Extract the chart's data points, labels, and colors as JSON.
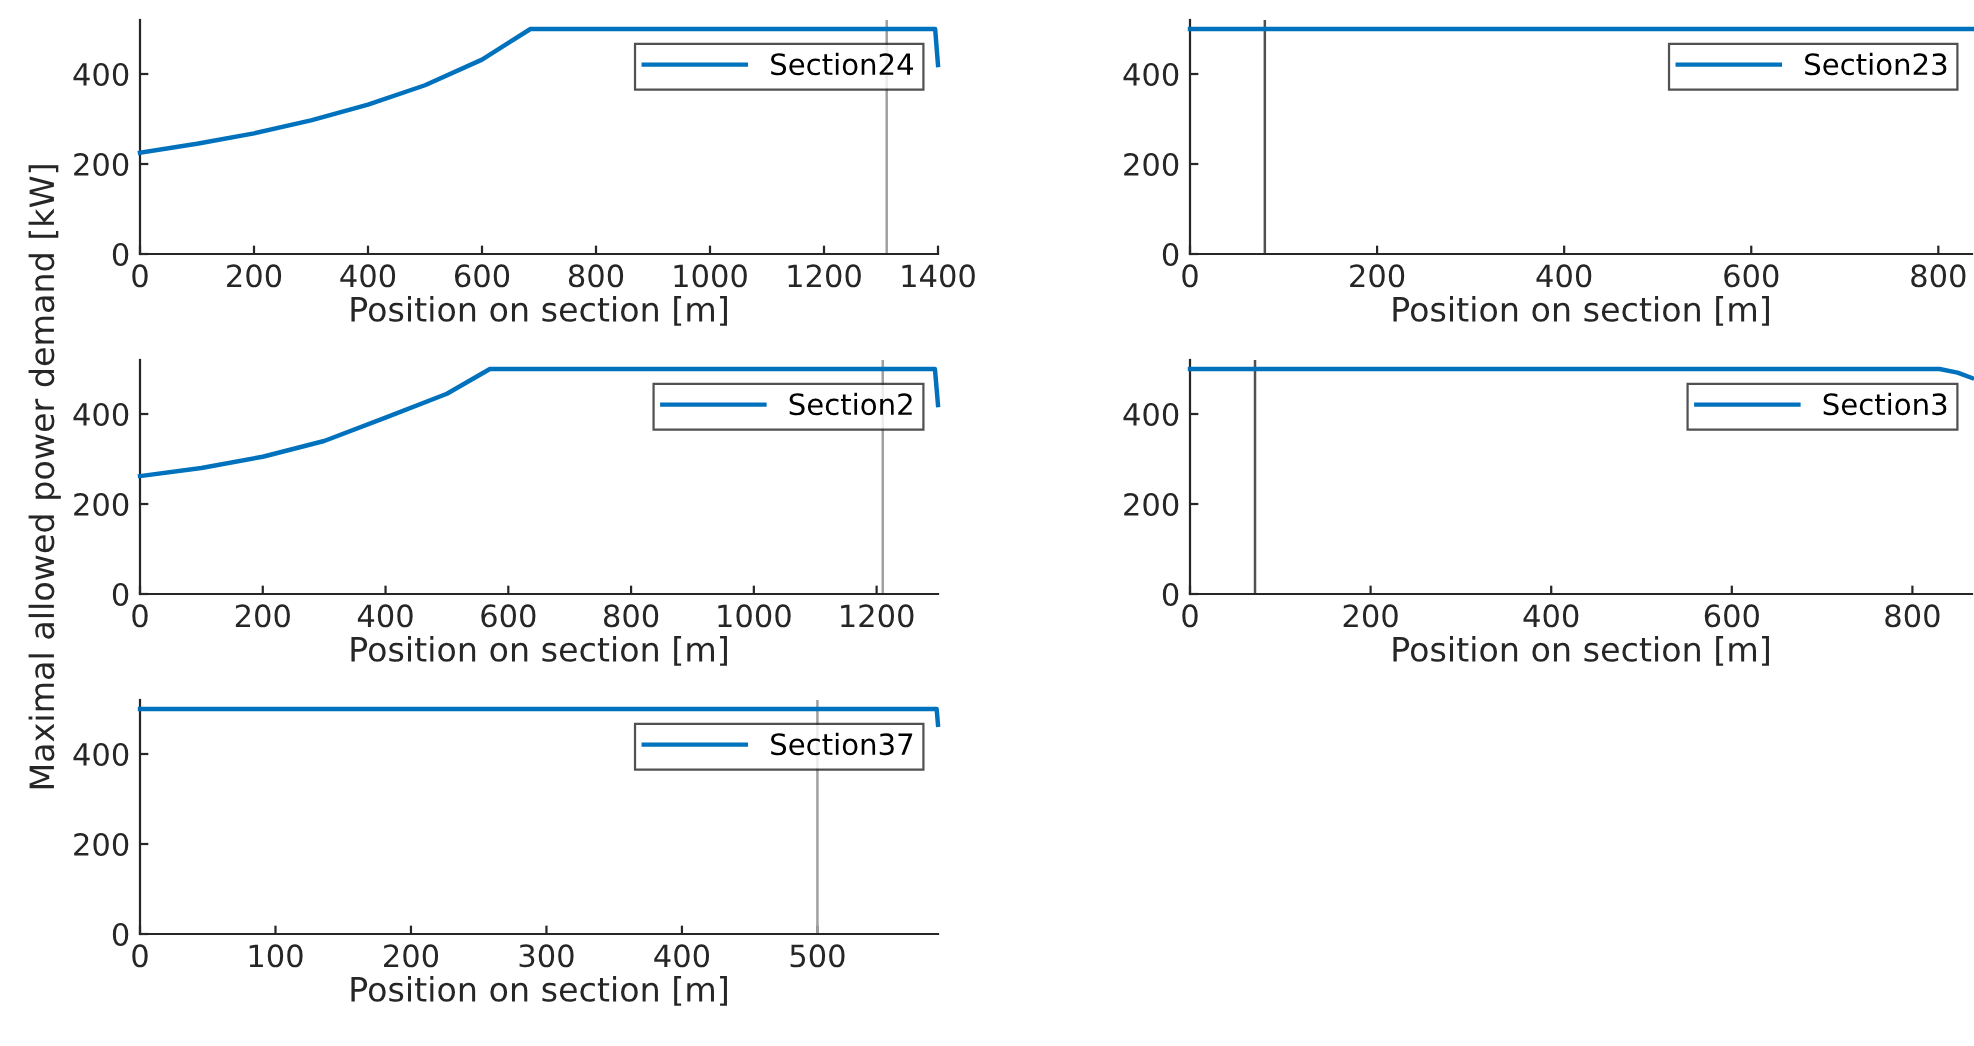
{
  "chart_data": [
    {
      "type": "line",
      "xlabel": "Position on section [m]",
      "x": [
        0,
        100,
        200,
        300,
        400,
        500,
        600,
        685,
        1395,
        1400
      ],
      "series": [
        {
          "name": "Section24",
          "color": "#0072bd",
          "values": [
            225,
            245,
            268,
            297,
            332,
            375,
            432,
            500,
            500,
            420
          ]
        }
      ],
      "xlim": [
        0,
        1400
      ],
      "xticks": [
        0,
        200,
        400,
        600,
        800,
        1000,
        1200,
        1400
      ],
      "ylim": [
        0,
        520
      ],
      "yticks": [
        0,
        200,
        400
      ],
      "ref_lines": [
        {
          "axis": "x",
          "value": 1310,
          "color": "#a0a0a0"
        }
      ],
      "legend": "top right",
      "grid": false
    },
    {
      "type": "line",
      "xlabel": "Position on section [m]",
      "x": [
        0,
        836
      ],
      "series": [
        {
          "name": "Section23",
          "color": "#0072bd",
          "values": [
            500,
            500
          ]
        }
      ],
      "xlim": [
        0,
        836
      ],
      "xticks": [
        0,
        200,
        400,
        600,
        800
      ],
      "ylim": [
        0,
        520
      ],
      "yticks": [
        0,
        200,
        400
      ],
      "ref_lines": [
        {
          "axis": "x",
          "value": 80,
          "color": "#505050"
        }
      ],
      "legend": "top right",
      "grid": false
    },
    {
      "type": "line",
      "xlabel": "Position on section [m]",
      "ylabel": "Maximal allowed power demand [kW]",
      "x": [
        0,
        100,
        200,
        300,
        400,
        500,
        570,
        1295,
        1300
      ],
      "series": [
        {
          "name": "Section2",
          "color": "#0072bd",
          "values": [
            262,
            280,
            305,
            340,
            392,
            445,
            500,
            500,
            420
          ]
        }
      ],
      "xlim": [
        0,
        1300
      ],
      "xticks": [
        0,
        200,
        400,
        600,
        800,
        1000,
        1200
      ],
      "ylim": [
        0,
        520
      ],
      "yticks": [
        0,
        200,
        400
      ],
      "ref_lines": [
        {
          "axis": "x",
          "value": 1210,
          "color": "#a0a0a0"
        }
      ],
      "legend": "top right",
      "grid": false
    },
    {
      "type": "line",
      "xlabel": "Position on section [m]",
      "x": [
        0,
        830,
        850,
        866
      ],
      "series": [
        {
          "name": "Section3",
          "color": "#0072bd",
          "values": [
            500,
            500,
            492,
            480
          ]
        }
      ],
      "xlim": [
        0,
        866
      ],
      "xticks": [
        0,
        200,
        400,
        600,
        800
      ],
      "ylim": [
        0,
        520
      ],
      "yticks": [
        0,
        200,
        400
      ],
      "ref_lines": [
        {
          "axis": "x",
          "value": 72,
          "color": "#505050"
        }
      ],
      "legend": "top right",
      "grid": false
    },
    {
      "type": "line",
      "xlabel": "Position on section [m]",
      "x": [
        0,
        588,
        589
      ],
      "series": [
        {
          "name": "Section37",
          "color": "#0072bd",
          "values": [
            500,
            500,
            465
          ]
        }
      ],
      "xlim": [
        0,
        589
      ],
      "xticks": [
        0,
        100,
        200,
        300,
        400,
        500
      ],
      "ylim": [
        0,
        520
      ],
      "yticks": [
        0,
        200,
        400
      ],
      "ref_lines": [
        {
          "axis": "x",
          "value": 500,
          "color": "#a0a0a0"
        }
      ],
      "legend": "top right",
      "grid": false
    }
  ]
}
